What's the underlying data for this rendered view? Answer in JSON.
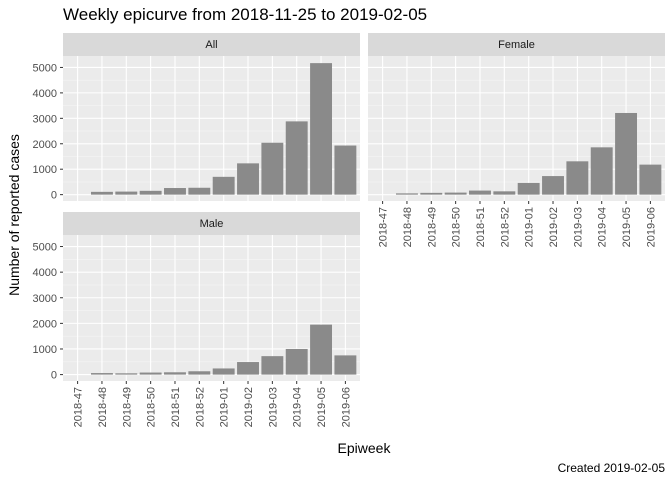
{
  "chart_data": {
    "type": "bar",
    "title": "Weekly epicurve from 2018-11-25 to 2019-02-05",
    "xlabel": "Epiweek",
    "ylabel": "Number of reported cases",
    "caption": "Created 2019-02-05",
    "categories": [
      "2018-47",
      "2018-48",
      "2018-49",
      "2018-50",
      "2018-51",
      "2018-52",
      "2019-01",
      "2019-02",
      "2019-03",
      "2019-04",
      "2019-05",
      "2019-06"
    ],
    "ylim": [
      -250,
      5450
    ],
    "yticks": [
      0,
      1000,
      2000,
      3000,
      4000,
      5000
    ],
    "grid": true,
    "bar_color": "#8a8a8a",
    "panel_background": "#ebebeb",
    "strip_background": "#d9d9d9",
    "panels": [
      {
        "name": "All",
        "values": [
          0,
          110,
          120,
          150,
          260,
          270,
          700,
          1230,
          2040,
          2880,
          5170,
          1930
        ]
      },
      {
        "name": "Female",
        "values": [
          0,
          50,
          70,
          80,
          160,
          130,
          460,
          730,
          1310,
          1860,
          3210,
          1180
        ]
      },
      {
        "name": "Male",
        "values": [
          0,
          60,
          50,
          80,
          90,
          130,
          240,
          490,
          720,
          1000,
          1950,
          750
        ]
      }
    ]
  }
}
